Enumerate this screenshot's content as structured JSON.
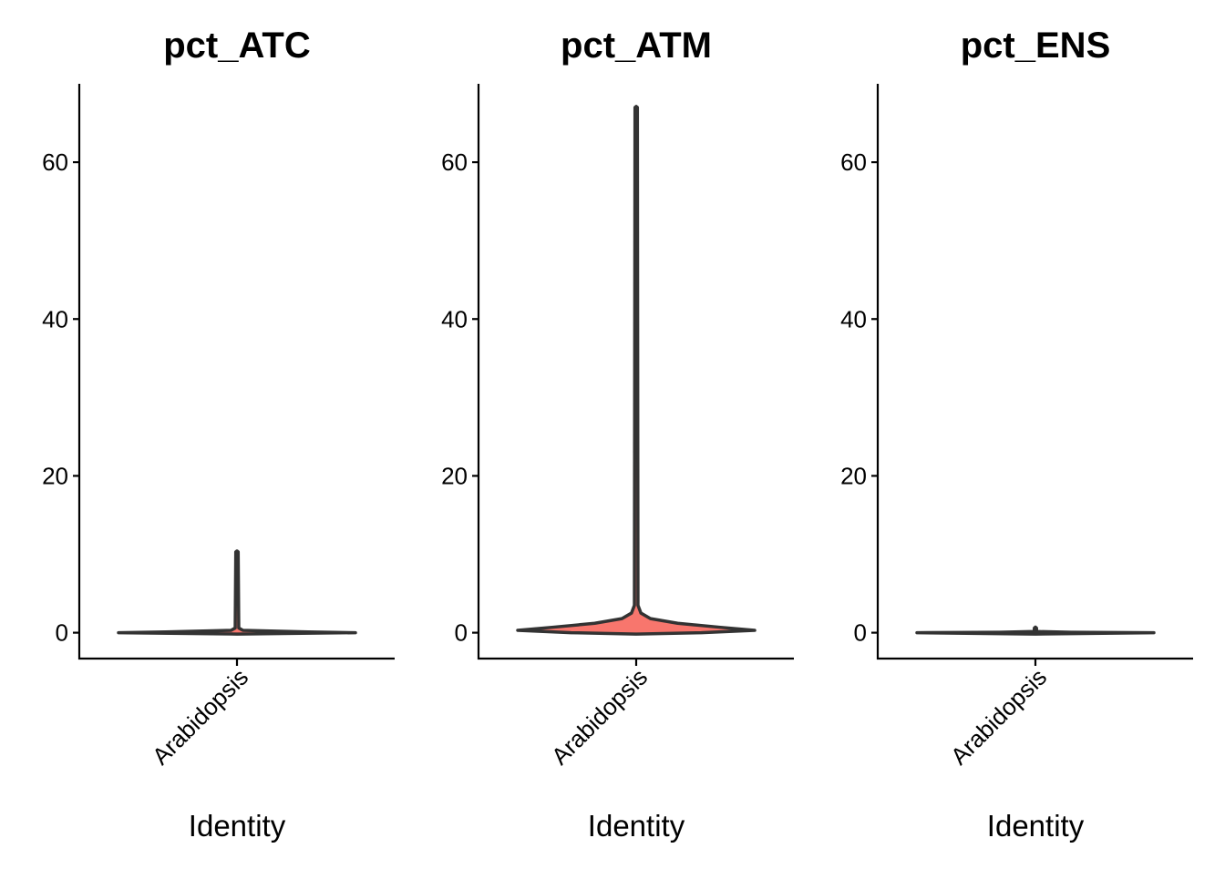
{
  "chart_data": [
    {
      "type": "violin",
      "title": "pct_ATC",
      "xlabel": "Identity",
      "ylabel": "",
      "categories": [
        "Arabidopsis"
      ],
      "ylim": [
        -3.3,
        70
      ],
      "yticks": [
        "0",
        "20",
        "40",
        "60"
      ],
      "fill": "#F8766D",
      "grid": false,
      "max": 10.3,
      "density": [
        [
          0,
          1.0
        ],
        [
          0.1,
          0.6
        ],
        [
          0.3,
          0.05
        ],
        [
          0.6,
          0.015
        ],
        [
          10.3,
          0.01
        ]
      ]
    },
    {
      "type": "violin",
      "title": "pct_ATM",
      "xlabel": "Identity",
      "ylabel": "",
      "categories": [
        "Arabidopsis"
      ],
      "ylim": [
        -3.3,
        70
      ],
      "yticks": [
        "0",
        "20",
        "40",
        "60"
      ],
      "fill": "#F8766D",
      "grid": false,
      "max": 67,
      "density": [
        [
          0,
          0.55
        ],
        [
          0.3,
          1.0
        ],
        [
          0.7,
          0.7
        ],
        [
          1.2,
          0.35
        ],
        [
          1.8,
          0.12
        ],
        [
          2.5,
          0.04
        ],
        [
          3.5,
          0.015
        ],
        [
          67,
          0.01
        ]
      ]
    },
    {
      "type": "violin",
      "title": "pct_ENS",
      "xlabel": "Identity",
      "ylabel": "",
      "categories": [
        "Arabidopsis"
      ],
      "ylim": [
        -3.3,
        70
      ],
      "yticks": [
        "0",
        "20",
        "40",
        "60"
      ],
      "fill": "#F8766D",
      "grid": false,
      "max": 0.6,
      "density": [
        [
          0,
          1.0
        ],
        [
          0.05,
          0.3
        ],
        [
          0.15,
          0.01
        ],
        [
          0.6,
          0.008
        ]
      ]
    }
  ]
}
